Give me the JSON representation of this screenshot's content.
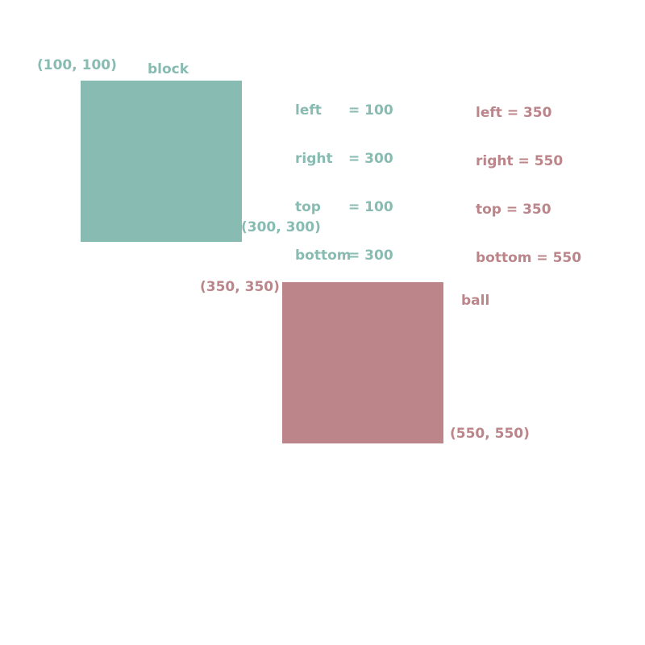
{
  "colors": {
    "block": "#88bbb2",
    "ball": "#bb858a",
    "background": "#ffffff"
  },
  "block": {
    "name": "block",
    "top_left_label": "(100, 100)",
    "bottom_right_label": "(300, 300)",
    "sides": [
      {
        "key": "left",
        "value": "= 100"
      },
      {
        "key": "right",
        "value": "= 300"
      },
      {
        "key": "top",
        "value": "= 100"
      },
      {
        "key": "bottom",
        "value": "= 300"
      }
    ]
  },
  "ball": {
    "name": "ball",
    "top_left_label": "(350, 350)",
    "bottom_right_label": "(550, 550)",
    "sides": [
      {
        "key": "left",
        "value": "= 350"
      },
      {
        "key": "right",
        "value": "= 550"
      },
      {
        "key": "top",
        "value": "= 350"
      },
      {
        "key": "bottom",
        "value": "= 550"
      }
    ]
  }
}
